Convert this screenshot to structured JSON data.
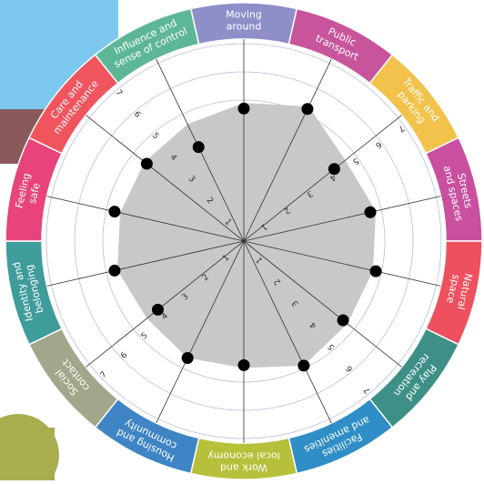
{
  "chart_data": {
    "type": "radar",
    "categories": [
      [
        "Moving",
        "around"
      ],
      [
        "Public",
        "transport"
      ],
      [
        "Traffic and",
        "parking"
      ],
      [
        "Streets",
        "and spaces"
      ],
      [
        "Natural",
        "space"
      ],
      [
        "Play and",
        "recreation"
      ],
      [
        "Facilities",
        "and amenities"
      ],
      [
        "Work and",
        "local economy"
      ],
      [
        "Housing and",
        "community"
      ],
      [
        "Social",
        "contact"
      ],
      [
        "Identity and",
        "belonging"
      ],
      [
        "Feeling",
        "safe"
      ],
      [
        "Care and",
        "maintenance"
      ],
      [
        "Influence and",
        "sense of control"
      ]
    ],
    "category_colors": [
      "#8e8fc9",
      "#c8559b",
      "#f2c24b",
      "#c94f9f",
      "#ef505e",
      "#3d8f87",
      "#2f8ec6",
      "#b7c03b",
      "#3f85c5",
      "#a3a68a",
      "#3e9c9b",
      "#e8437b",
      "#f0555e",
      "#5db797"
    ],
    "series": [
      {
        "color": "#c8c8c8",
        "values": [
          4.9,
          5.3,
          4.6,
          4.8,
          4.7,
          4.7,
          4.9,
          4.5,
          4.6,
          4.4,
          4.6,
          4.5,
          4.5,
          4.6
        ]
      },
      {
        "color": "#000000",
        "values": [
          4.7,
          5.2,
          4.1,
          4.6,
          4.8,
          4.5,
          4.9,
          4.4,
          4.6,
          3.9,
          4.7,
          4.7,
          4.4,
          3.7
        ]
      }
    ],
    "rlim": [
      0,
      7
    ],
    "rticks": [
      1,
      2,
      3,
      4,
      5,
      6,
      7
    ],
    "grid": true
  }
}
